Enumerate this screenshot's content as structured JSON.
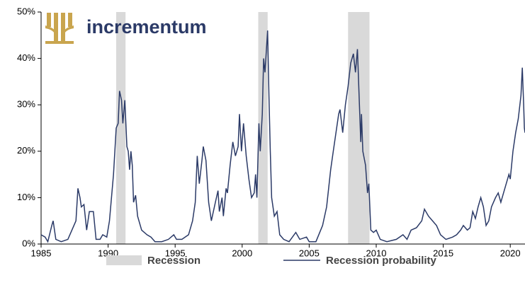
{
  "chart_data": {
    "type": "line",
    "logo": "incrementum",
    "xlim": [
      1985,
      2021.1
    ],
    "xticks": [
      1985,
      1990,
      1995,
      2000,
      2005,
      2010,
      2015,
      2020
    ],
    "ylim": [
      0,
      50
    ],
    "yticks": [
      {
        "value": 0,
        "label": "0%"
      },
      {
        "value": 10,
        "label": "10%"
      },
      {
        "value": 20,
        "label": "20%"
      },
      {
        "value": 30,
        "label": "30%"
      },
      {
        "value": 40,
        "label": "40%"
      },
      {
        "value": 50,
        "label": "50%"
      }
    ],
    "shaded": {
      "name": "Recession",
      "color": "#d9d9d9",
      "ranges": [
        [
          1990.6,
          1991.3
        ],
        [
          2001.2,
          2001.9
        ],
        [
          2007.9,
          2009.5
        ]
      ]
    },
    "series": [
      {
        "name": "Recession probability",
        "color": "#2b3a67",
        "x": [
          1985.0,
          1985.3,
          1985.5,
          1985.8,
          1985.9,
          1986.1,
          1986.5,
          1987.0,
          1987.3,
          1987.6,
          1987.75,
          1987.9,
          1988.0,
          1988.2,
          1988.4,
          1988.6,
          1988.9,
          1989.1,
          1989.4,
          1989.6,
          1989.9,
          1990.1,
          1990.4,
          1990.6,
          1990.75,
          1990.85,
          1991.0,
          1991.1,
          1991.25,
          1991.4,
          1991.5,
          1991.6,
          1991.7,
          1991.8,
          1991.9,
          1992.05,
          1992.2,
          1992.5,
          1992.9,
          1993.2,
          1993.5,
          1994.0,
          1994.5,
          1994.9,
          1995.1,
          1995.5,
          1996.0,
          1996.3,
          1996.5,
          1996.65,
          1996.8,
          1997.0,
          1997.1,
          1997.3,
          1997.5,
          1997.7,
          1998.0,
          1998.2,
          1998.3,
          1998.5,
          1998.6,
          1998.8,
          1998.9,
          1999.1,
          1999.3,
          1999.5,
          1999.7,
          1999.8,
          1999.95,
          2000.1,
          2000.3,
          2000.5,
          2000.7,
          2000.9,
          2001.0,
          2001.1,
          2001.25,
          2001.35,
          2001.5,
          2001.6,
          2001.7,
          2001.9,
          2002.0,
          2002.1,
          2002.2,
          2002.4,
          2002.6,
          2002.8,
          2003.1,
          2003.5,
          2004.0,
          2004.3,
          2004.8,
          2005.0,
          2005.5,
          2006.0,
          2006.3,
          2006.6,
          2006.8,
          2007.2,
          2007.3,
          2007.5,
          2007.7,
          2007.9,
          2008.1,
          2008.3,
          2008.45,
          2008.6,
          2008.75,
          2008.85,
          2008.9,
          2009.0,
          2009.2,
          2009.35,
          2009.45,
          2009.6,
          2009.8,
          2010.0,
          2010.3,
          2010.8,
          2011.5,
          2012.0,
          2012.3,
          2012.6,
          2013.0,
          2013.4,
          2013.6,
          2013.9,
          2014.2,
          2014.5,
          2014.8,
          2015.2,
          2015.7,
          2016.0,
          2016.3,
          2016.5,
          2016.8,
          2017.0,
          2017.2,
          2017.4,
          2017.6,
          2017.8,
          2018.0,
          2018.2,
          2018.4,
          2018.6,
          2018.9,
          2019.1,
          2019.3,
          2019.5,
          2019.7,
          2019.9,
          2020.0,
          2020.2,
          2020.4,
          2020.6,
          2020.8,
          2020.9,
          2021.0,
          2021.05,
          2021.1
        ],
        "values": [
          2,
          1.5,
          0.5,
          4,
          5,
          1,
          0.5,
          1,
          3,
          5,
          12,
          10,
          8,
          8.5,
          3,
          7,
          7,
          1,
          1,
          2,
          1.5,
          5,
          15,
          25,
          26,
          33,
          31,
          26,
          31,
          21,
          20,
          16,
          20,
          17,
          9,
          10.5,
          6,
          3,
          2,
          1.5,
          0.5,
          0.5,
          1,
          2,
          1,
          1,
          2,
          5,
          9,
          19,
          13,
          18,
          21,
          18,
          9,
          5,
          9,
          11.5,
          7,
          10,
          6,
          12,
          11,
          17,
          22,
          19,
          21,
          28,
          20,
          26,
          19,
          14,
          10,
          11,
          15,
          10,
          26,
          20,
          28,
          40,
          37,
          46,
          32,
          20,
          10,
          6,
          7,
          2,
          1,
          0.5,
          2.5,
          1,
          1.5,
          0.5,
          0.5,
          4,
          8,
          16,
          20,
          28,
          29,
          24,
          30,
          34,
          39,
          41,
          37,
          42,
          30,
          22,
          28,
          20,
          17,
          11,
          13,
          3,
          2.5,
          3,
          1,
          0.5,
          1,
          2,
          1,
          3,
          3.5,
          5,
          7.5,
          6,
          5,
          4,
          2,
          1,
          1.5,
          2,
          3,
          4,
          3,
          3.5,
          7,
          5.5,
          8,
          10,
          8,
          4,
          5,
          8,
          10,
          11,
          9,
          11,
          13,
          15,
          14,
          20,
          24,
          27,
          32,
          38,
          30,
          25,
          24
        ]
      }
    ]
  }
}
